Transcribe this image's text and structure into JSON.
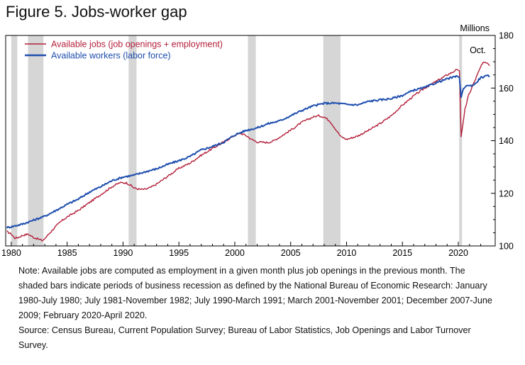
{
  "figure": {
    "title": "Figure 5. Jobs-worker gap",
    "note_text": "Note: Available jobs are computed as employment in a given month plus job openings in the previous month. The shaded bars indicate periods of business recession as defined by the National Bureau of Economic Research: January 1980-July 1980; July 1981-November 1982; July 1990-March 1991; March 2001-November 2001; December 2007-June 2009; February 2020-April 2020.",
    "source_text": "Source: Census Bureau, Current Population Survey; Bureau of Labor Statistics, Job Openings and Labor Turnover Survey."
  },
  "chart_data": {
    "type": "line",
    "title": "Figure 5. Jobs-worker gap",
    "ylabel": "Millions",
    "xlim": [
      1979.5,
      2023.3
    ],
    "ylim": [
      100,
      180
    ],
    "x_ticks": [
      1980,
      1985,
      1990,
      1995,
      2000,
      2005,
      2010,
      2015,
      2020
    ],
    "y_ticks": [
      100,
      120,
      140,
      160,
      180
    ],
    "y_axis_side": "right",
    "grid": false,
    "legend_position": "top-left",
    "annotation": "Oct.",
    "recessions": [
      [
        1980.0,
        1980.54
      ],
      [
        1981.5,
        1982.88
      ],
      [
        1990.5,
        1991.21
      ],
      [
        2001.17,
        2001.88
      ],
      [
        2007.92,
        2009.46
      ],
      [
        2020.08,
        2020.29
      ]
    ],
    "series": [
      {
        "name": "Available jobs (job openings + employment)",
        "color": "#b3203a",
        "points": [
          [
            1979.6,
            105.5
          ],
          [
            1980.0,
            104.5
          ],
          [
            1980.3,
            103.0
          ],
          [
            1980.6,
            103.2
          ],
          [
            1981.0,
            104.0
          ],
          [
            1981.5,
            104.5
          ],
          [
            1982.0,
            103.2
          ],
          [
            1982.5,
            102.5
          ],
          [
            1982.8,
            102.0
          ],
          [
            1983.0,
            102.8
          ],
          [
            1983.5,
            105.2
          ],
          [
            1984.0,
            107.5
          ],
          [
            1984.5,
            109.5
          ],
          [
            1985.0,
            111.0
          ],
          [
            1986.0,
            113.5
          ],
          [
            1987.0,
            116.5
          ],
          [
            1988.0,
            119.5
          ],
          [
            1989.0,
            122.5
          ],
          [
            1989.7,
            124.0
          ],
          [
            1990.3,
            124.0
          ],
          [
            1990.7,
            123.0
          ],
          [
            1991.0,
            122.0
          ],
          [
            1991.5,
            121.5
          ],
          [
            1992.0,
            121.5
          ],
          [
            1992.5,
            122.3
          ],
          [
            1993.0,
            123.5
          ],
          [
            1994.0,
            126.5
          ],
          [
            1995.0,
            129.5
          ],
          [
            1996.0,
            131.5
          ],
          [
            1997.0,
            134.5
          ],
          [
            1998.0,
            137.0
          ],
          [
            1999.0,
            139.5
          ],
          [
            2000.0,
            142.0
          ],
          [
            2000.5,
            142.8
          ],
          [
            2001.0,
            142.0
          ],
          [
            2001.5,
            140.5
          ],
          [
            2002.0,
            139.5
          ],
          [
            2003.0,
            139.3
          ],
          [
            2003.5,
            140.0
          ],
          [
            2004.0,
            141.3
          ],
          [
            2005.0,
            144.0
          ],
          [
            2006.0,
            147.0
          ],
          [
            2007.0,
            149.0
          ],
          [
            2007.5,
            149.5
          ],
          [
            2008.0,
            149.0
          ],
          [
            2008.5,
            147.5
          ],
          [
            2009.0,
            144.5
          ],
          [
            2009.5,
            141.5
          ],
          [
            2010.0,
            140.5
          ],
          [
            2011.0,
            141.8
          ],
          [
            2012.0,
            144.0
          ],
          [
            2013.0,
            146.5
          ],
          [
            2014.0,
            149.5
          ],
          [
            2015.0,
            153.5
          ],
          [
            2016.0,
            157.0
          ],
          [
            2017.0,
            160.0
          ],
          [
            2018.0,
            162.5
          ],
          [
            2019.0,
            165.0
          ],
          [
            2019.9,
            167.0
          ],
          [
            2020.1,
            166.5
          ],
          [
            2020.25,
            141.5
          ],
          [
            2020.4,
            146.0
          ],
          [
            2020.6,
            152.0
          ],
          [
            2020.9,
            157.0
          ],
          [
            2021.3,
            161.0
          ],
          [
            2021.7,
            165.0
          ],
          [
            2022.0,
            168.0
          ],
          [
            2022.3,
            170.0
          ],
          [
            2022.6,
            169.5
          ],
          [
            2022.8,
            168.5
          ]
        ]
      },
      {
        "name": "Available workers (labor force)",
        "color": "#1f4fae",
        "points": [
          [
            1979.6,
            107.0
          ],
          [
            1980.0,
            107.3
          ],
          [
            1981.0,
            108.3
          ],
          [
            1982.0,
            109.8
          ],
          [
            1983.0,
            111.3
          ],
          [
            1984.0,
            113.5
          ],
          [
            1985.0,
            115.8
          ],
          [
            1986.0,
            117.8
          ],
          [
            1987.0,
            120.5
          ],
          [
            1988.0,
            122.5
          ],
          [
            1989.0,
            124.8
          ],
          [
            1990.0,
            126.2
          ],
          [
            1991.0,
            126.9
          ],
          [
            1992.0,
            128.2
          ],
          [
            1993.0,
            129.3
          ],
          [
            1994.0,
            131.0
          ],
          [
            1995.0,
            132.4
          ],
          [
            1996.0,
            134.0
          ],
          [
            1997.0,
            136.5
          ],
          [
            1998.0,
            137.8
          ],
          [
            1999.0,
            139.4
          ],
          [
            2000.0,
            142.2
          ],
          [
            2001.0,
            143.9
          ],
          [
            2002.0,
            144.9
          ],
          [
            2003.0,
            146.5
          ],
          [
            2004.0,
            147.5
          ],
          [
            2005.0,
            149.5
          ],
          [
            2006.0,
            151.5
          ],
          [
            2007.0,
            153.2
          ],
          [
            2008.0,
            154.2
          ],
          [
            2009.0,
            154.3
          ],
          [
            2010.0,
            153.8
          ],
          [
            2011.0,
            153.6
          ],
          [
            2012.0,
            155.0
          ],
          [
            2013.0,
            155.5
          ],
          [
            2014.0,
            156.0
          ],
          [
            2015.0,
            157.2
          ],
          [
            2016.0,
            159.2
          ],
          [
            2017.0,
            160.2
          ],
          [
            2018.0,
            162.0
          ],
          [
            2019.0,
            163.5
          ],
          [
            2019.9,
            164.5
          ],
          [
            2020.1,
            164.0
          ],
          [
            2020.25,
            156.5
          ],
          [
            2020.45,
            160.0
          ],
          [
            2020.8,
            161.0
          ],
          [
            2021.0,
            160.8
          ],
          [
            2021.5,
            161.5
          ],
          [
            2022.0,
            164.0
          ],
          [
            2022.5,
            164.5
          ],
          [
            2022.8,
            164.7
          ]
        ]
      }
    ]
  }
}
